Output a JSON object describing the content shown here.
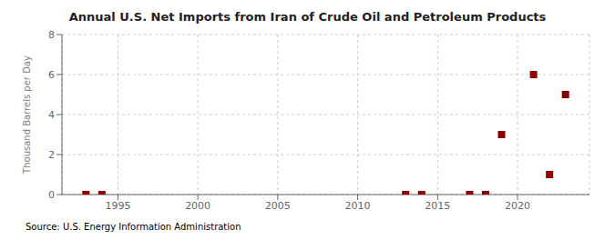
{
  "chart_data": {
    "type": "scatter",
    "title": "Annual U.S. Net Imports from Iran of Crude Oil and Petroleum Products",
    "ylabel": "Thousand Barrels per Day",
    "annotations": [
      "Source: U.S. Energy Information Administration"
    ],
    "xlim": [
      1991.5,
      2024.5
    ],
    "xticks": [
      1995,
      2000,
      2005,
      2010,
      2015,
      2020
    ],
    "ylim": [
      0,
      8
    ],
    "yticks": [
      0,
      2,
      4,
      6,
      8
    ],
    "grid": true,
    "marker": "square",
    "series": [
      {
        "color": "#8B0000",
        "x": [
          1993,
          1994,
          2013,
          2014,
          2017,
          2018,
          2021,
          2022,
          2023
        ],
        "values": [
          0.0,
          0.0,
          0.0,
          0.0,
          0.0,
          0.0,
          6.0,
          1.0,
          5.0
        ]
      },
      {
        "color": "#8B0000",
        "x": [
          2019
        ],
        "values": [
          3.0
        ]
      }
    ]
  }
}
